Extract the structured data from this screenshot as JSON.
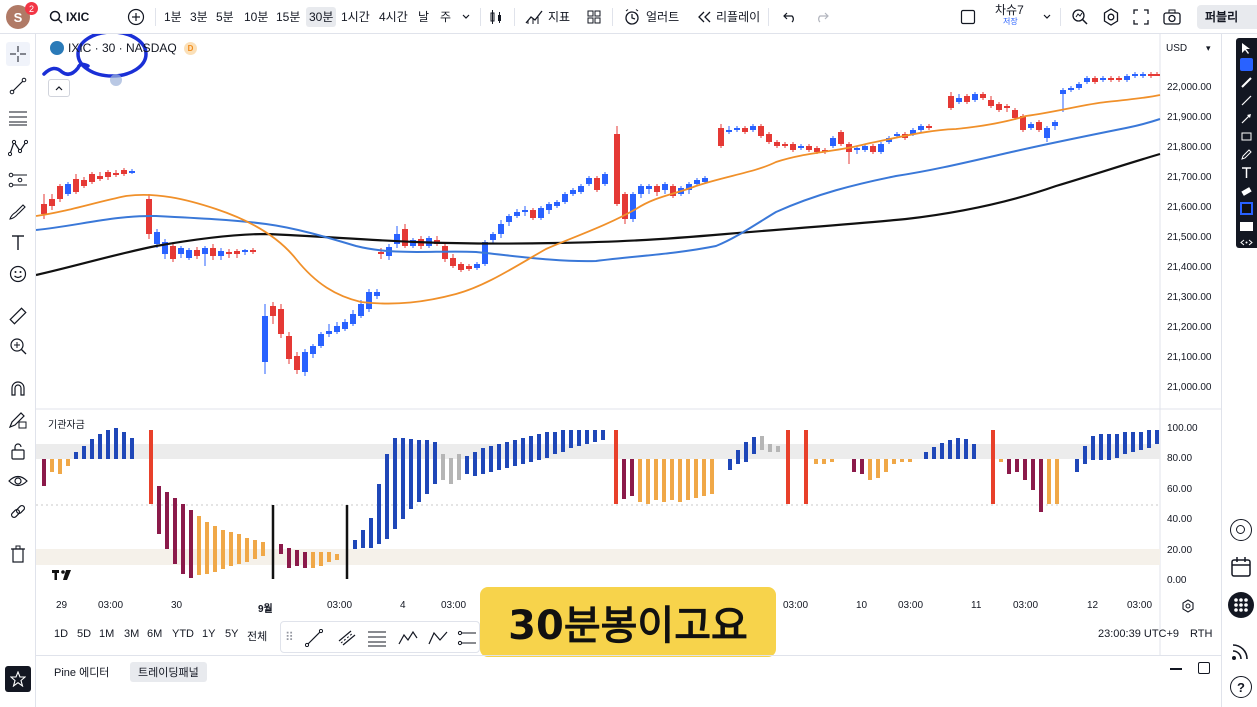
{
  "header": {
    "avatar_letter": "S",
    "notification_count": "2",
    "symbol": "IXIC",
    "intervals": [
      "1분",
      "3분",
      "5분",
      "10분",
      "15분",
      "30분",
      "1시간",
      "4시간",
      "날",
      "주"
    ],
    "active_interval": "30분",
    "indicators_label": "지표",
    "alert_label": "얼러트",
    "replay_label": "리플레이",
    "layout_name": "차슈7",
    "layout_sub": "저장",
    "publish_label": "퍼블리"
  },
  "legend": {
    "symbol_line": "IXIC · 30 · NASDAQ",
    "badge": "D"
  },
  "price_axis": {
    "currency": "USD",
    "labels": [
      "22,000.00",
      "21,900.00",
      "21,800.00",
      "21,700.00",
      "21,600.00",
      "21,500.00",
      "21,400.00",
      "21,300.00",
      "21,200.00",
      "21,100.00",
      "21,000.00"
    ]
  },
  "oscillator": {
    "title": "기관자금",
    "labels": [
      "100.00",
      "80.00",
      "60.00",
      "40.00",
      "20.00",
      "0.00"
    ]
  },
  "time_axis": {
    "labels": [
      "29",
      "03:00",
      "30",
      "9월",
      "03:00",
      "4",
      "03:00",
      "03:00",
      "10",
      "03:00",
      "11",
      "03:00",
      "12",
      "03:00"
    ]
  },
  "ranges": [
    "1D",
    "5D",
    "1M",
    "3M",
    "6M",
    "YTD",
    "1Y",
    "5Y",
    "전체"
  ],
  "clock": "23:00:39 UTC+9",
  "session": "RTH",
  "bottom_tabs": [
    "Pine 에디터",
    "트레이딩패널"
  ],
  "caption": "30분봉이고요",
  "colors": {
    "up": "#2962ff",
    "down": "#e53935",
    "ema_orange": "#f0902a",
    "ma_blue": "#3a78d8",
    "ma_black": "#111111",
    "osc_blue": "#1f47b8",
    "osc_maroon": "#8b1a4a",
    "osc_orange": "#f0a848",
    "osc_red": "#e8402a",
    "osc_gray": "#b5b5b5",
    "caption_bg": "#f7d34b"
  }
}
